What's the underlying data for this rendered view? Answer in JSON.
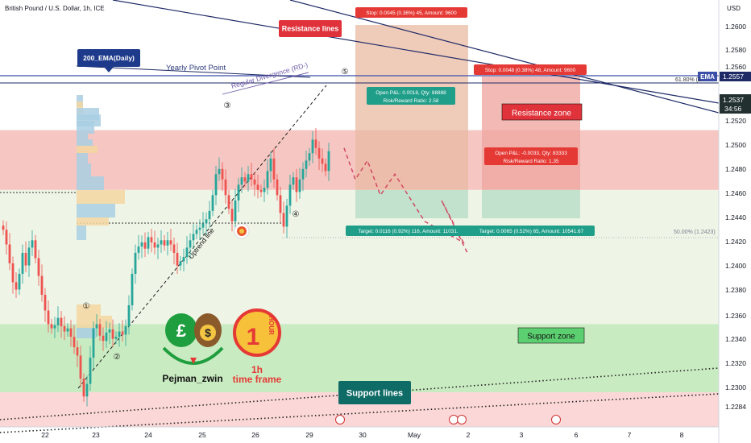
{
  "header": {
    "symbol_title": "British Pound / U.S. Dollar, 1h, ICE",
    "currency": "USD"
  },
  "colors": {
    "up": "#26a69a",
    "down": "#ef5350",
    "resistance_zone": "#f5c6c2",
    "support_zone": "#c9ebc1",
    "bottom_band": "#fbd7d7",
    "mid_band": "#eef4e6",
    "vp_blue": "#a9cfe3",
    "vp_yellow": "#f3d6a0",
    "vp_pink": "#f2b5b5",
    "ema_blue": "#3b4fa8",
    "projection": "#d24a63"
  },
  "chart_data": {
    "type": "candlestick",
    "title": "British Pound / U.S. Dollar, 1h, ICE",
    "ylim": [
      1.2274,
      1.2675
    ],
    "y_ticks": [
      "1.2600",
      "1.2580",
      "1.2520",
      "1.2500",
      "1.2480",
      "1.2460",
      "1.2440",
      "1.2420",
      "1.2400",
      "1.2380",
      "1.2360",
      "1.2340",
      "1.2320",
      "1.2300",
      "1.2284"
    ],
    "x_ticks": [
      "22",
      "23",
      "24",
      "25",
      "26",
      "29",
      "30",
      "May",
      "2",
      "3",
      "6",
      "7",
      "8"
    ],
    "price_badges": {
      "ema_tag": "EMA",
      "ema_value": "1.2557",
      "last_price": "1.2537",
      "countdown": "34:56",
      "partial_top": "1.2560",
      "fib_label": "61.80% (1."
    },
    "fib_50_label": "50.00% (1.2423)",
    "zones": {
      "resistance": {
        "label": "Resistance zone",
        "from": 1.25,
        "to": 1.2557
      },
      "support": {
        "label": "Support zone",
        "from": 1.2307,
        "to": 1.2372
      }
    },
    "annotations": {
      "resistance_lines": "Resistance lines",
      "support_lines": "Support lines",
      "ema_label": "200_EMA(Daily)",
      "yearly_pivot": "Yearly Pivot Point",
      "divergence": "Regular Divergence (RD-)",
      "uptrend": "Uptrend line",
      "waves": [
        "①",
        "②",
        "③",
        "④",
        "⑤"
      ],
      "author": "Pejman_zwin",
      "timeframe_big": "1h",
      "timeframe_caption": "time frame",
      "hour_badge_text": "HOUR"
    },
    "positions": [
      {
        "stop": "Stop: 0.0045 (0.36%) 45, Amount: 9600",
        "pnl": "Open P&L: 0.0018, Qty: 88888",
        "rr": "Risk/Reward Ratio: 2.58",
        "target": "Target: 0.0116 (0.92%) 116, Amount: 11031."
      },
      {
        "stop": "Stop: 0.0048 (0.38%) 48, Amount: 9600",
        "pnl": "Open P&L: -0.0033, Qty: 83333",
        "rr": "Risk/Reward Ratio: 1.35",
        "target": "Target: 0.0065 (0.52%) 65, Amount: 10541.67"
      }
    ],
    "closes": [
      1.2462,
      1.2448,
      1.243,
      1.2412,
      1.2405,
      1.242,
      1.244,
      1.2428,
      1.2445,
      1.2452,
      1.2435,
      1.2418,
      1.24,
      1.2385,
      1.2372,
      1.2368,
      1.2371,
      1.2378,
      1.237,
      1.2365,
      1.2368,
      1.236,
      1.235,
      1.2342,
      1.232,
      1.2303,
      1.2315,
      1.234,
      1.2368,
      1.2372,
      1.2361,
      1.2356,
      1.2364,
      1.2367,
      1.2358,
      1.236,
      1.2365,
      1.2362,
      1.237,
      1.239,
      1.242,
      1.244,
      1.2446,
      1.245,
      1.2444,
      1.2455,
      1.245,
      1.2445,
      1.2448,
      1.2452,
      1.2447,
      1.2452,
      1.2448,
      1.244,
      1.2428,
      1.2432,
      1.2436,
      1.2445,
      1.2452,
      1.2458,
      1.2462,
      1.2464,
      1.2468,
      1.2472,
      1.248,
      1.2495,
      1.2515,
      1.252,
      1.251,
      1.2495,
      1.2482,
      1.247,
      1.249,
      1.2505,
      1.2512,
      1.2508,
      1.2515,
      1.251,
      1.2505,
      1.25,
      1.2498,
      1.2502,
      1.2518,
      1.253,
      1.251,
      1.2495,
      1.2478,
      1.2465,
      1.2485,
      1.2505,
      1.2512,
      1.2498,
      1.251,
      1.252,
      1.2528,
      1.2535,
      1.2548,
      1.254,
      1.253,
      1.2525,
      1.2518,
      1.2537
    ],
    "projection_path": [
      1.254,
      1.251,
      1.2528,
      1.2495,
      1.2515,
      1.247,
      1.245,
      1.249,
      1.244
    ]
  }
}
